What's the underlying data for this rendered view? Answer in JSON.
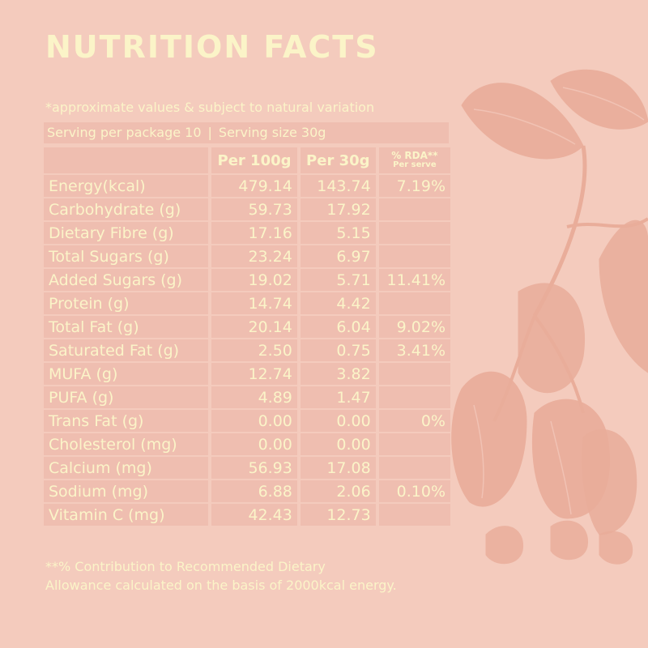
{
  "title": "NUTRITION FACTS",
  "note": "*approximate values & subject to natural variation",
  "serving": {
    "per_package": "Serving per package 10",
    "separator": "|",
    "size": "Serving size 30g"
  },
  "headers": {
    "per100": "Per 100g",
    "per30": "Per 30g",
    "rda_line1": "% RDA**",
    "rda_line2": "Per serve"
  },
  "rows": [
    {
      "name": "Energy(kcal)",
      "per100": "479.14",
      "per30": "143.74",
      "rda": "7.19%"
    },
    {
      "name": "Carbohydrate (g)",
      "per100": "59.73",
      "per30": "17.92",
      "rda": ""
    },
    {
      "name": "Dietary Fibre (g)",
      "per100": "17.16",
      "per30": "5.15",
      "rda": ""
    },
    {
      "name": "Total Sugars (g)",
      "per100": "23.24",
      "per30": "6.97",
      "rda": ""
    },
    {
      "name": "Added Sugars (g)",
      "per100": "19.02",
      "per30": "5.71",
      "rda": "11.41%"
    },
    {
      "name": "Protein (g)",
      "per100": "14.74",
      "per30": "4.42",
      "rda": ""
    },
    {
      "name": "Total Fat (g)",
      "per100": "20.14",
      "per30": "6.04",
      "rda": "9.02%"
    },
    {
      "name": "Saturated Fat (g)",
      "per100": "2.50",
      "per30": "0.75",
      "rda": "3.41%"
    },
    {
      "name": "MUFA (g)",
      "per100": "12.74",
      "per30": "3.82",
      "rda": ""
    },
    {
      "name": "PUFA (g)",
      "per100": "4.89",
      "per30": "1.47",
      "rda": ""
    },
    {
      "name": "Trans Fat (g)",
      "per100": "0.00",
      "per30": "0.00",
      "rda": "0%"
    },
    {
      "name": "Cholesterol (mg)",
      "per100": "0.00",
      "per30": "0.00",
      "rda": ""
    },
    {
      "name": "Calcium (mg)",
      "per100": "56.93",
      "per30": "17.08",
      "rda": ""
    },
    {
      "name": "Sodium (mg)",
      "per100": "6.88",
      "per30": "2.06",
      "rda": "0.10%"
    },
    {
      "name": "Vitamin C (mg)",
      "per100": "42.43",
      "per30": "12.73",
      "rda": ""
    }
  ],
  "footnote": {
    "line1": "**% Contribution to Recommended Dietary",
    "line2": "Allowance calculated on the basis of 2000kcal energy."
  },
  "colors": {
    "background": "#f4cbbd",
    "cell": "#efbeb0",
    "text": "#fbf4c8",
    "illustration": "#e9ad9a"
  },
  "illustration_icon": "cashew-plant-illustration"
}
